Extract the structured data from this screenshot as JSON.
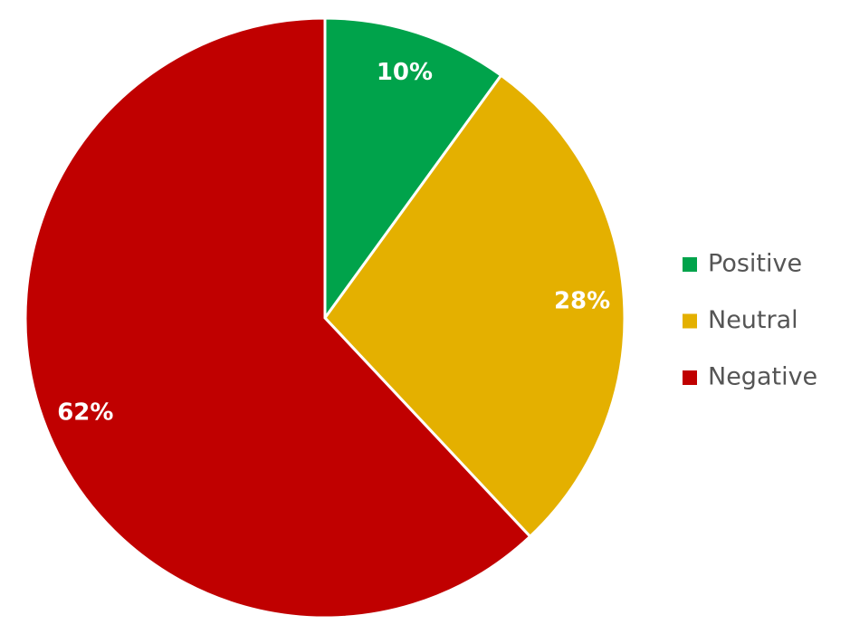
{
  "chart_data": {
    "type": "pie",
    "categories": [
      "Positive",
      "Neutral",
      "Negative"
    ],
    "values": [
      10,
      28,
      62
    ],
    "value_labels": [
      "10%",
      "28%",
      "62%"
    ],
    "colors": [
      "#00a34b",
      "#e4b000",
      "#c00000"
    ],
    "legend": "right"
  }
}
